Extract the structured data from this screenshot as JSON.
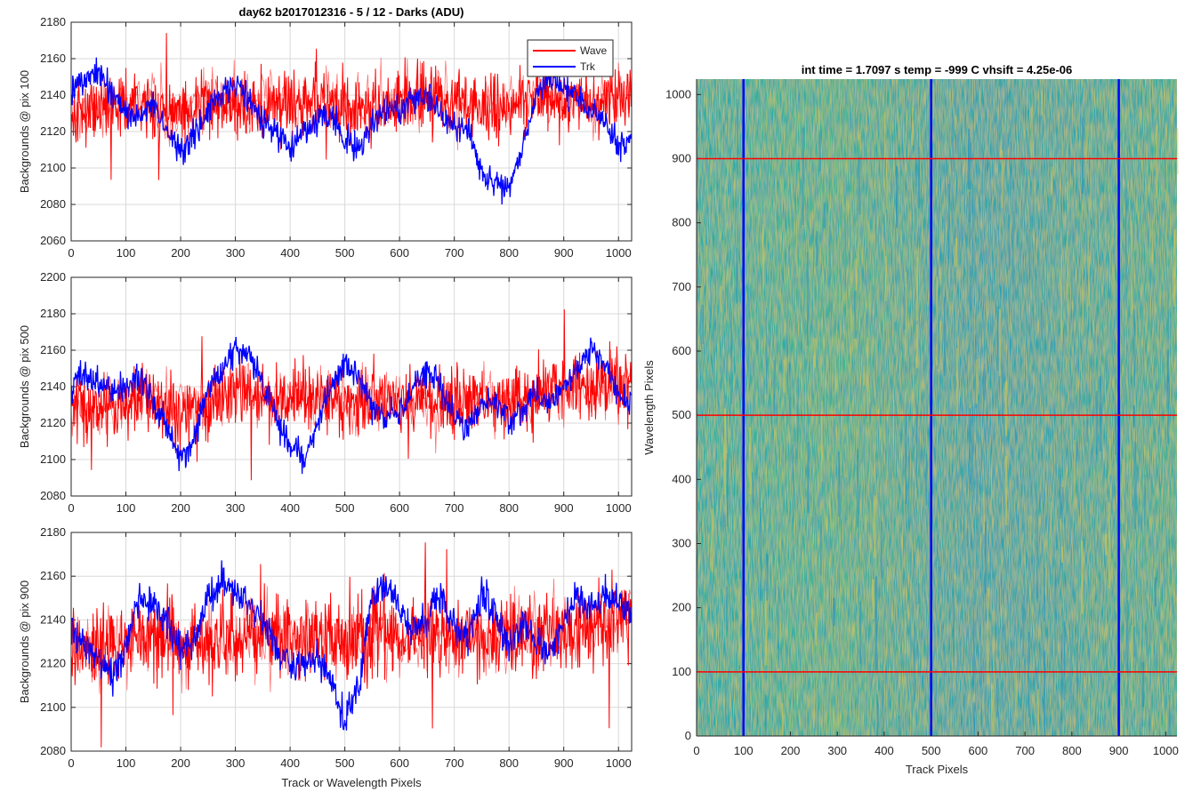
{
  "figure_title": "day62 b2017012316 - 5 / 12 - Darks (ADU)",
  "colors": {
    "wave": "#ff0000",
    "trk": "#0000ff",
    "grid": "#d9d9d9",
    "axis": "#262626"
  },
  "chart_data": [
    {
      "type": "line",
      "title": "day62 b2017012316 - 5 / 12 - Darks (ADU)",
      "ylabel": "Backgrounds @ pix 100",
      "xlabel": "",
      "xlim": [
        0,
        1024
      ],
      "ylim": [
        2060,
        2180
      ],
      "xticks": [
        "0",
        "100",
        "200",
        "300",
        "400",
        "500",
        "600",
        "700",
        "800",
        "900",
        "1000"
      ],
      "yticks": [
        "2060",
        "2080",
        "2100",
        "2120",
        "2140",
        "2160",
        "2180"
      ],
      "grid": true,
      "legend": {
        "placement": "top-right",
        "entries": [
          "Wave",
          "Trk"
        ]
      },
      "series": [
        {
          "name": "Wave",
          "color": "#ff0000",
          "x": [
            0,
            50,
            100,
            150,
            200,
            250,
            300,
            350,
            400,
            450,
            500,
            550,
            600,
            650,
            700,
            750,
            800,
            850,
            900,
            950,
            1000,
            1024
          ],
          "values": [
            2128,
            2134,
            2136,
            2133,
            2131,
            2138,
            2136,
            2134,
            2135,
            2138,
            2133,
            2134,
            2137,
            2138,
            2136,
            2133,
            2135,
            2138,
            2136,
            2134,
            2140,
            2142
          ]
        },
        {
          "name": "Trk",
          "color": "#0000ff",
          "x": [
            0,
            25,
            50,
            75,
            100,
            125,
            150,
            175,
            200,
            225,
            250,
            275,
            300,
            325,
            350,
            375,
            400,
            425,
            450,
            475,
            500,
            525,
            550,
            575,
            600,
            625,
            650,
            675,
            700,
            725,
            750,
            775,
            800,
            825,
            850,
            875,
            900,
            925,
            950,
            975,
            1000,
            1024
          ],
          "values": [
            2140,
            2148,
            2152,
            2140,
            2132,
            2128,
            2136,
            2118,
            2110,
            2118,
            2132,
            2140,
            2146,
            2138,
            2126,
            2118,
            2110,
            2120,
            2126,
            2130,
            2116,
            2110,
            2124,
            2134,
            2132,
            2138,
            2140,
            2130,
            2125,
            2120,
            2098,
            2092,
            2088,
            2112,
            2140,
            2150,
            2145,
            2138,
            2132,
            2126,
            2110,
            2118
          ]
        }
      ]
    },
    {
      "type": "line",
      "title": "",
      "ylabel": "Backgrounds @ pix 500",
      "xlabel": "",
      "xlim": [
        0,
        1024
      ],
      "ylim": [
        2080,
        2200
      ],
      "xticks": [
        "0",
        "100",
        "200",
        "300",
        "400",
        "500",
        "600",
        "700",
        "800",
        "900",
        "1000"
      ],
      "yticks": [
        "2080",
        "2100",
        "2120",
        "2140",
        "2160",
        "2180",
        "2200"
      ],
      "grid": true,
      "series": [
        {
          "name": "Wave",
          "color": "#ff0000",
          "x": [
            0,
            50,
            100,
            150,
            200,
            250,
            300,
            350,
            400,
            450,
            500,
            550,
            600,
            650,
            700,
            750,
            800,
            850,
            900,
            950,
            1000,
            1024
          ],
          "values": [
            2130,
            2128,
            2132,
            2134,
            2126,
            2133,
            2137,
            2134,
            2132,
            2136,
            2130,
            2132,
            2134,
            2133,
            2130,
            2134,
            2131,
            2135,
            2138,
            2140,
            2142,
            2145
          ]
        },
        {
          "name": "Trk",
          "color": "#0000ff",
          "x": [
            0,
            25,
            50,
            75,
            100,
            125,
            150,
            175,
            200,
            225,
            250,
            275,
            300,
            325,
            350,
            375,
            400,
            425,
            450,
            475,
            500,
            525,
            550,
            575,
            600,
            625,
            650,
            675,
            700,
            725,
            750,
            775,
            800,
            825,
            850,
            875,
            900,
            925,
            950,
            975,
            1000,
            1024
          ],
          "values": [
            2140,
            2148,
            2142,
            2136,
            2140,
            2146,
            2130,
            2118,
            2098,
            2112,
            2140,
            2150,
            2160,
            2158,
            2140,
            2122,
            2108,
            2100,
            2120,
            2140,
            2152,
            2146,
            2130,
            2122,
            2126,
            2140,
            2150,
            2140,
            2124,
            2118,
            2132,
            2130,
            2122,
            2128,
            2136,
            2130,
            2140,
            2148,
            2160,
            2152,
            2136,
            2130
          ]
        }
      ]
    },
    {
      "type": "line",
      "title": "",
      "ylabel": "Backgrounds @ pix 900",
      "xlabel": "Track or Wavelength Pixels",
      "xlim": [
        0,
        1024
      ],
      "ylim": [
        2080,
        2180
      ],
      "xticks": [
        "0",
        "100",
        "200",
        "300",
        "400",
        "500",
        "600",
        "700",
        "800",
        "900",
        "1000"
      ],
      "yticks": [
        "2080",
        "2100",
        "2120",
        "2140",
        "2160",
        "2180"
      ],
      "grid": true,
      "series": [
        {
          "name": "Wave",
          "color": "#ff0000",
          "x": [
            0,
            50,
            100,
            150,
            200,
            250,
            300,
            350,
            400,
            450,
            500,
            550,
            600,
            650,
            700,
            750,
            800,
            850,
            900,
            950,
            1000,
            1024
          ],
          "values": [
            2128,
            2126,
            2130,
            2132,
            2128,
            2131,
            2134,
            2132,
            2131,
            2134,
            2130,
            2133,
            2134,
            2132,
            2133,
            2130,
            2134,
            2133,
            2135,
            2137,
            2140,
            2142
          ]
        },
        {
          "name": "Trk",
          "color": "#0000ff",
          "x": [
            0,
            25,
            50,
            75,
            100,
            125,
            150,
            175,
            200,
            225,
            250,
            275,
            300,
            325,
            350,
            375,
            400,
            425,
            450,
            475,
            500,
            525,
            550,
            575,
            600,
            625,
            650,
            675,
            700,
            725,
            750,
            775,
            800,
            825,
            850,
            875,
            900,
            925,
            950,
            975,
            1000,
            1024
          ],
          "values": [
            2135,
            2128,
            2122,
            2112,
            2128,
            2150,
            2146,
            2140,
            2125,
            2130,
            2150,
            2158,
            2152,
            2148,
            2140,
            2128,
            2120,
            2118,
            2124,
            2112,
            2096,
            2110,
            2150,
            2158,
            2144,
            2136,
            2140,
            2150,
            2138,
            2130,
            2152,
            2140,
            2128,
            2138,
            2130,
            2126,
            2140,
            2150,
            2146,
            2152,
            2148,
            2140
          ]
        }
      ]
    },
    {
      "type": "heatmap",
      "title": "int time = 1.7097 s    temp = -999 C    vhsift = 4.25e-06",
      "xlabel": "Track Pixels",
      "ylabel": "Wavelength Pixels",
      "xlim": [
        0,
        1024
      ],
      "ylim": [
        0,
        1024
      ],
      "xticks": [
        "0",
        "100",
        "200",
        "300",
        "400",
        "500",
        "600",
        "700",
        "800",
        "900",
        "1000"
      ],
      "yticks": [
        "0",
        "100",
        "200",
        "300",
        "400",
        "500",
        "600",
        "700",
        "800",
        "900",
        "1000"
      ],
      "colormap": "parula",
      "value_range": [
        2080,
        2180
      ],
      "typical_value": 2133,
      "marker_lines": {
        "vertical_x": [
          100,
          500,
          900
        ],
        "vertical_color": "#0000ff",
        "horizontal_y": [
          100,
          500,
          900
        ],
        "horizontal_color": "#ff0000"
      }
    }
  ]
}
